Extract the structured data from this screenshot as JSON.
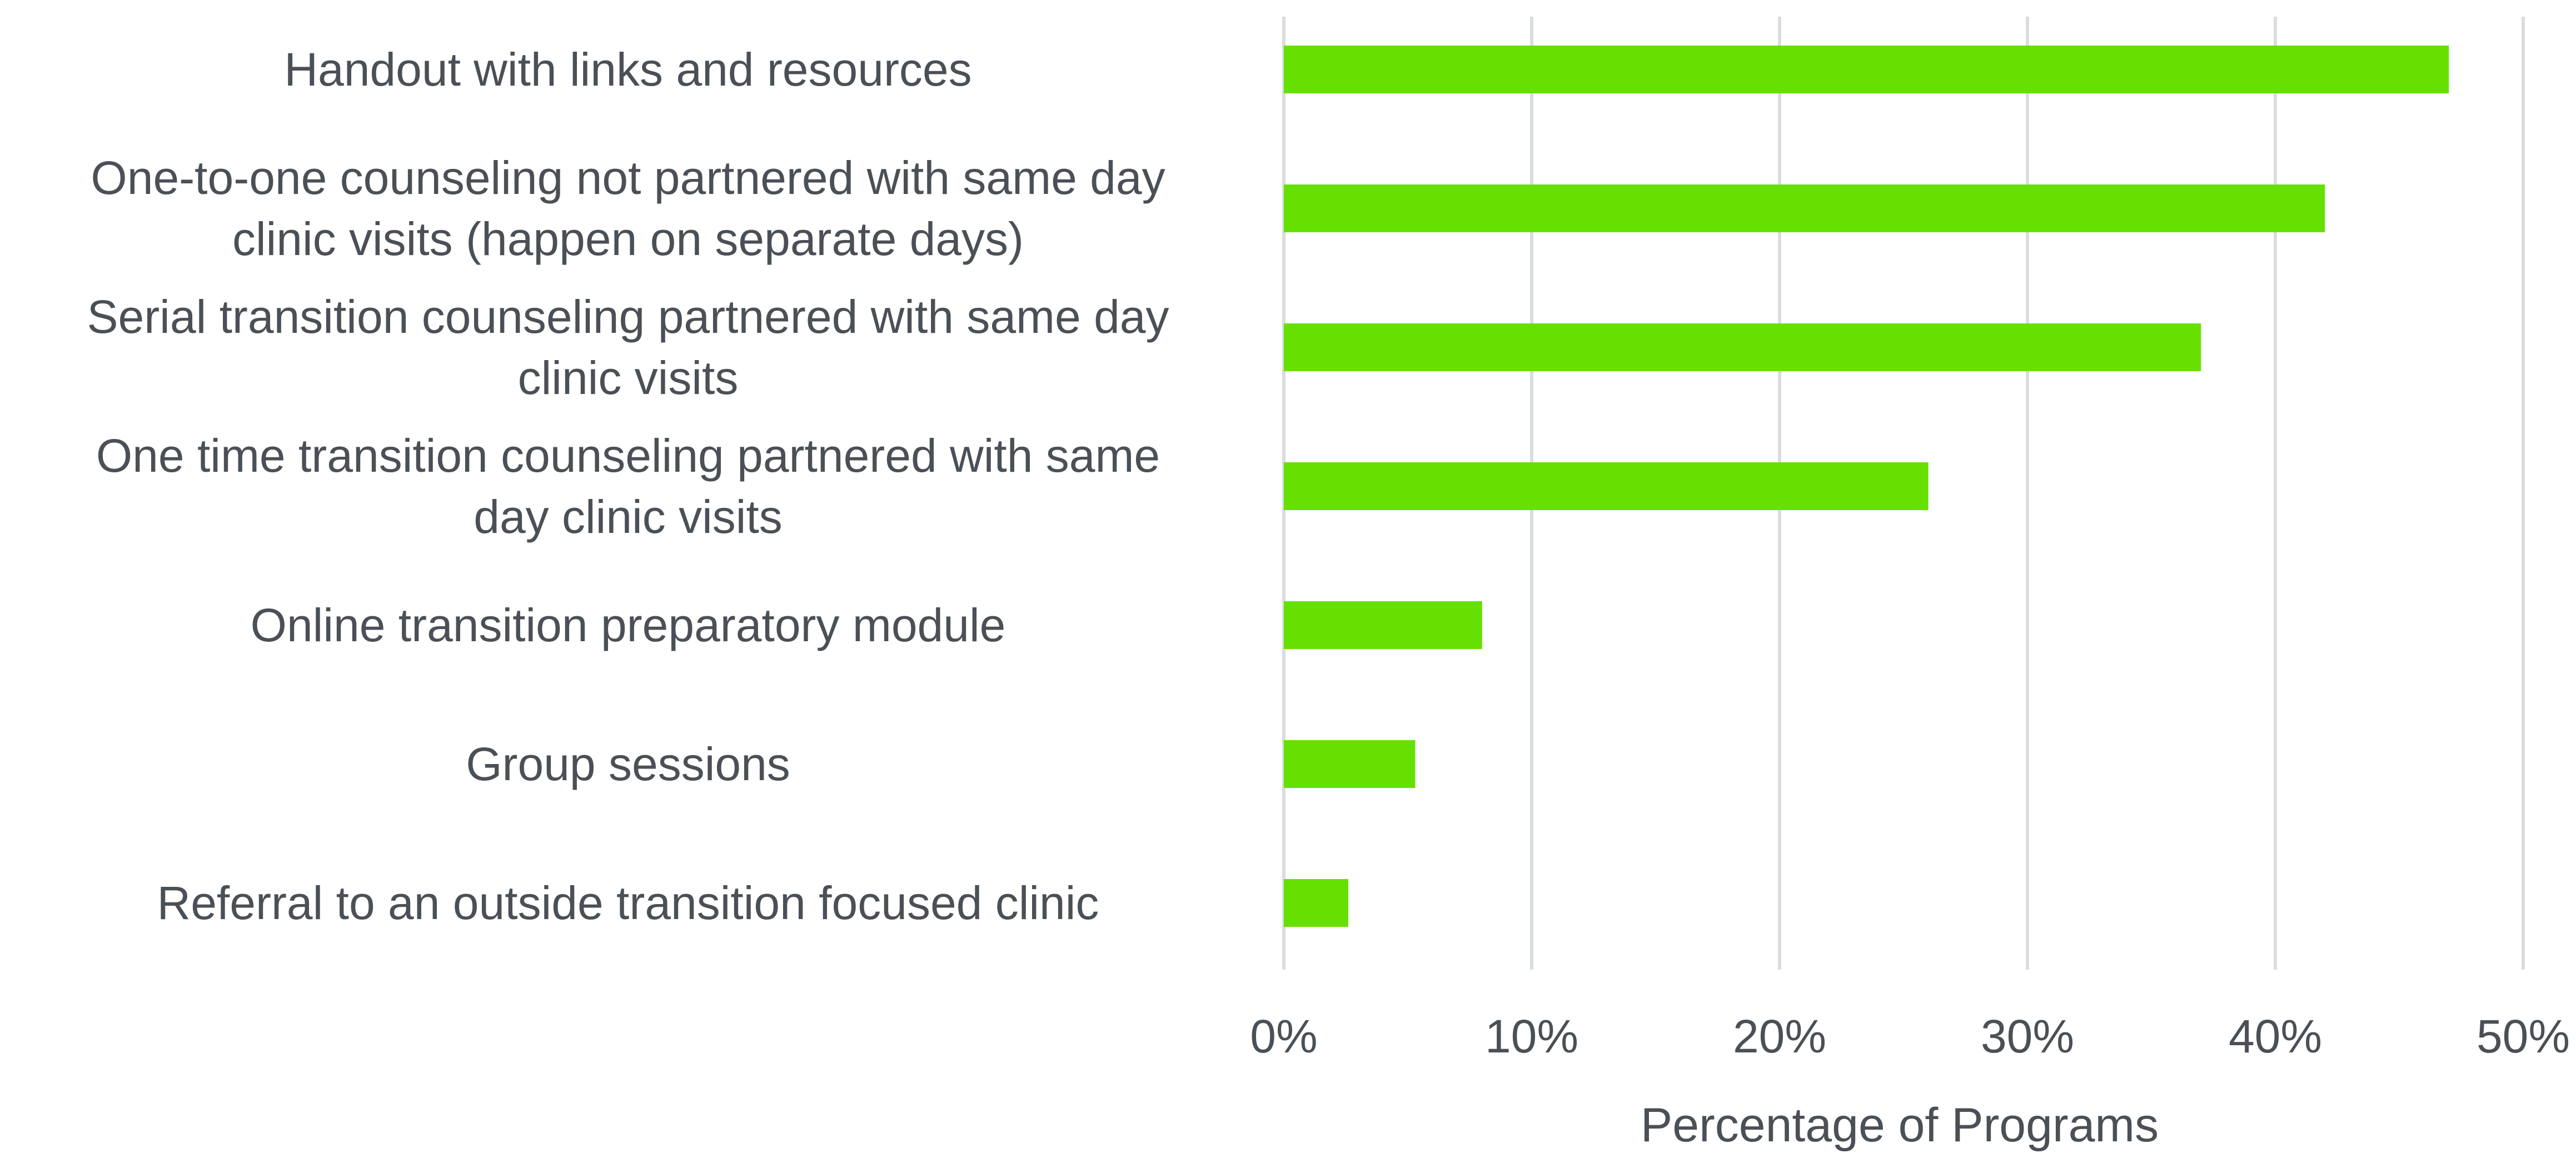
{
  "chart_data": {
    "type": "bar",
    "orientation": "horizontal",
    "categories": [
      "Handout with links and resources",
      "One-to-one counseling not partnered with same day clinic visits (happen on separate days)",
      "Serial transition counseling partnered with same day clinic visits",
      "One time transition counseling partnered with same day clinic visits",
      "Online transition preparatory module",
      "Group sessions",
      "Referral to an outside transition focused clinic"
    ],
    "category_lines": [
      [
        "Handout with links and resources"
      ],
      [
        "One-to-one counseling not partnered with same day",
        "clinic visits (happen on separate days)"
      ],
      [
        "Serial transition counseling partnered with same day",
        "clinic visits"
      ],
      [
        "One time transition counseling partnered with same",
        "day clinic visits"
      ],
      [
        "Online transition preparatory module"
      ],
      [
        "Group sessions"
      ],
      [
        "Referral to an outside transition focused clinic"
      ]
    ],
    "values": [
      47,
      42,
      37,
      26,
      8,
      5.3,
      2.6
    ],
    "xlim": [
      0,
      50
    ],
    "xticks": [
      "0%",
      "10%",
      "20%",
      "30%",
      "40%",
      "50%"
    ],
    "xlabel": "Percentage of Programs",
    "ylabel": "",
    "title": "",
    "grid": true,
    "legend": "none",
    "bar_color": "#66e000",
    "grid_color": "#d9dddb",
    "text_color": "#4a5056"
  }
}
